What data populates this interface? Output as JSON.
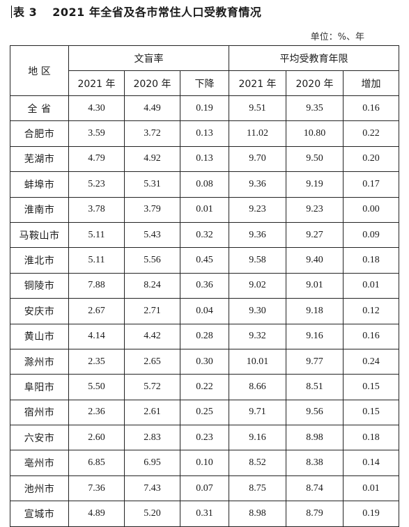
{
  "title": {
    "label": "表 3",
    "text": "2021 年全省及各市常住人口受教育情况"
  },
  "unit": "单位：%、年",
  "headers": {
    "region": "地 区",
    "group1": "文盲率",
    "group2": "平均受教育年限",
    "sub": [
      "2021 年",
      "2020 年",
      "下降",
      "2021 年",
      "2020 年",
      "增加"
    ]
  },
  "rows": [
    [
      "全  省",
      "4.30",
      "4.49",
      "0.19",
      "9.51",
      "9.35",
      "0.16"
    ],
    [
      "合肥市",
      "3.59",
      "3.72",
      "0.13",
      "11.02",
      "10.80",
      "0.22"
    ],
    [
      "芜湖市",
      "4.79",
      "4.92",
      "0.13",
      "9.70",
      "9.50",
      "0.20"
    ],
    [
      "蚌埠市",
      "5.23",
      "5.31",
      "0.08",
      "9.36",
      "9.19",
      "0.17"
    ],
    [
      "淮南市",
      "3.78",
      "3.79",
      "0.01",
      "9.23",
      "9.23",
      "0.00"
    ],
    [
      "马鞍山市",
      "5.11",
      "5.43",
      "0.32",
      "9.36",
      "9.27",
      "0.09"
    ],
    [
      "淮北市",
      "5.11",
      "5.56",
      "0.45",
      "9.58",
      "9.40",
      "0.18"
    ],
    [
      "铜陵市",
      "7.88",
      "8.24",
      "0.36",
      "9.02",
      "9.01",
      "0.01"
    ],
    [
      "安庆市",
      "2.67",
      "2.71",
      "0.04",
      "9.30",
      "9.18",
      "0.12"
    ],
    [
      "黄山市",
      "4.14",
      "4.42",
      "0.28",
      "9.32",
      "9.16",
      "0.16"
    ],
    [
      "滁州市",
      "2.35",
      "2.65",
      "0.30",
      "10.01",
      "9.77",
      "0.24"
    ],
    [
      "阜阳市",
      "5.50",
      "5.72",
      "0.22",
      "8.66",
      "8.51",
      "0.15"
    ],
    [
      "宿州市",
      "2.36",
      "2.61",
      "0.25",
      "9.71",
      "9.56",
      "0.15"
    ],
    [
      "六安市",
      "2.60",
      "2.83",
      "0.23",
      "9.16",
      "8.98",
      "0.18"
    ],
    [
      "亳州市",
      "6.85",
      "6.95",
      "0.10",
      "8.52",
      "8.38",
      "0.14"
    ],
    [
      "池州市",
      "7.36",
      "7.43",
      "0.07",
      "8.75",
      "8.74",
      "0.01"
    ],
    [
      "宣城市",
      "4.89",
      "5.20",
      "0.31",
      "8.98",
      "8.79",
      "0.19"
    ]
  ]
}
